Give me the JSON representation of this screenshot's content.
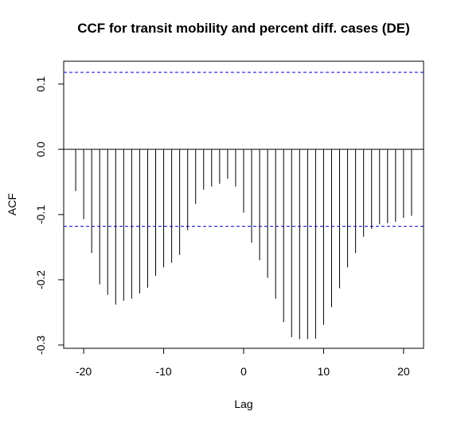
{
  "chart_data": {
    "type": "bar",
    "title": "CCF for transit mobility and percent diff. cases (DE)",
    "xlabel": "Lag",
    "ylabel": "ACF",
    "xlim": [
      -22.5,
      22.5
    ],
    "ylim": [
      -0.305,
      0.135
    ],
    "x_ticks": [
      -20,
      -10,
      0,
      10,
      20
    ],
    "x_tick_labels": [
      "-20",
      "-10",
      "0",
      "10",
      "20"
    ],
    "y_ticks": [
      -0.3,
      -0.2,
      -0.1,
      0.0,
      0.1
    ],
    "y_tick_labels": [
      "-0.3",
      "-0.2",
      "-0.1",
      "0.0",
      "0.1"
    ],
    "confidence_bound": 0.118,
    "confidence_color": "#0000cc",
    "series": [
      {
        "x": [
          -21,
          -20,
          -19,
          -18,
          -17,
          -16,
          -15,
          -14,
          -13,
          -12,
          -11,
          -10,
          -9,
          -8,
          -7,
          -6,
          -5,
          -4,
          -3,
          -2,
          -1,
          0,
          1,
          2,
          3,
          4,
          5,
          6,
          7,
          8,
          9,
          10,
          11,
          12,
          13,
          14,
          15,
          16,
          17,
          18,
          19,
          20,
          21
        ],
        "values": [
          -0.064,
          -0.107,
          -0.159,
          -0.207,
          -0.223,
          -0.238,
          -0.232,
          -0.229,
          -0.221,
          -0.212,
          -0.194,
          -0.181,
          -0.174,
          -0.162,
          -0.124,
          -0.084,
          -0.062,
          -0.057,
          -0.053,
          -0.045,
          -0.057,
          -0.097,
          -0.143,
          -0.17,
          -0.197,
          -0.229,
          -0.265,
          -0.288,
          -0.291,
          -0.291,
          -0.29,
          -0.269,
          -0.242,
          -0.213,
          -0.181,
          -0.159,
          -0.134,
          -0.122,
          -0.115,
          -0.113,
          -0.111,
          -0.105,
          -0.102
        ]
      }
    ]
  }
}
